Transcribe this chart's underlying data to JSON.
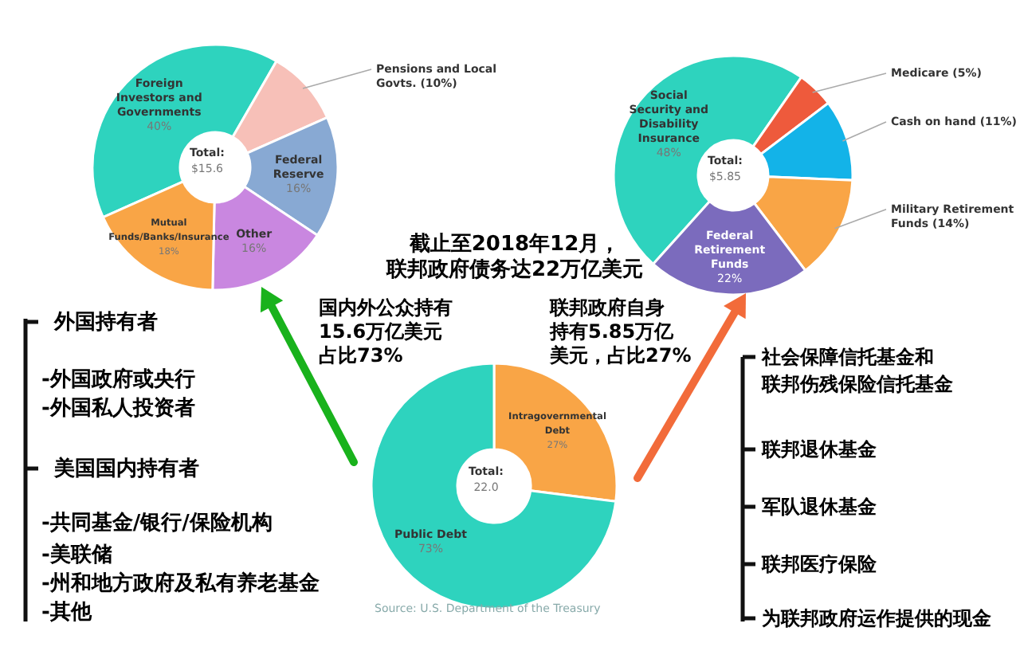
{
  "chart_data": [
    {
      "type": "donut",
      "categories": [
        "Foreign Investors and Governments",
        "Pensions and Local Govts.",
        "Federal Reserve",
        "Other",
        "Mutual Funds/Banks/Insurance"
      ],
      "values": [
        40,
        10,
        16,
        16,
        18
      ],
      "colors": [
        "#2ed3be",
        "#f7c0b8",
        "#88a9d3",
        "#c987e0",
        "#f9a546"
      ],
      "value_labels": [
        "40%",
        "(10%)",
        "16%",
        "16%",
        "18%"
      ],
      "annotations": [
        "Total:",
        "$15.6"
      ]
    },
    {
      "type": "donut",
      "categories": [
        "Social Security and Disability Insurance",
        "Medicare",
        "Cash on hand",
        "Military Retirement Funds",
        "Federal Retirement Funds"
      ],
      "values": [
        48,
        5,
        11,
        14,
        22
      ],
      "colors": [
        "#2ed3be",
        "#ee5a3c",
        "#13b3e8",
        "#f9a546",
        "#7b6bbd"
      ],
      "value_labels": [
        "48%",
        "(5%)",
        "(11%)",
        "(14%)",
        "22%"
      ],
      "annotations": [
        "Total:",
        "$5.85"
      ]
    },
    {
      "type": "donut",
      "title": "截止至2018年12月，联邦政府债务达22万亿美元",
      "categories": [
        "Intragovernmental Debt",
        "Public Debt"
      ],
      "values": [
        27,
        73
      ],
      "colors": [
        "#f9a546",
        "#2ed3be"
      ],
      "value_labels": [
        "27%",
        "73%"
      ],
      "annotations": [
        "Total:",
        "22.0",
        "国内外公众持有15.6万亿美元占比73%",
        "联邦政府自身持有5.85万亿美元，占比27%",
        "Source: U.S. Department of the Treasury"
      ]
    },
    {
      "type": "other",
      "annotations": [
        "外国持有者",
        "-外国政府或央行",
        "-外国私人投资者",
        "美国国内持有者",
        "-共同基金/银行/保险机构",
        "-美联储",
        "-州和地方政府及私有养老基金",
        "-其他"
      ]
    },
    {
      "type": "other",
      "annotations": [
        "社会保障信托基金和联邦伤残保险信托基金",
        "联邦退休基金",
        "军队退休基金",
        "联邦医疗保险",
        "为联邦政府运作提供的现金"
      ]
    }
  ]
}
